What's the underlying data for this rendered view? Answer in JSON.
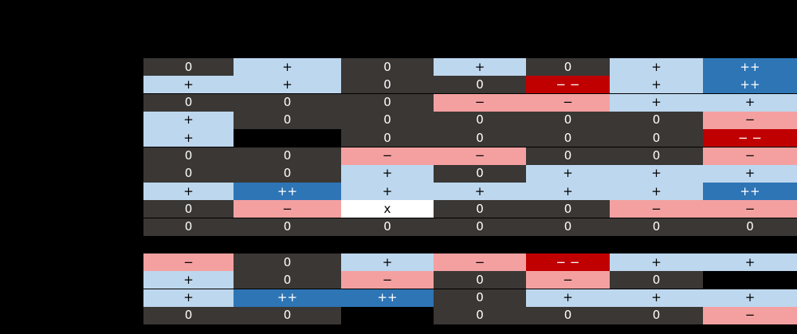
{
  "legend_colors": {
    "0": "#3a3735",
    "+": "#bdd7ee",
    "++": "#2e75b6",
    "−": "#f4a0a0",
    "− −": "#c00000",
    "x": "#ffffff",
    "": "#000000"
  },
  "sections": [
    {
      "rows": [
        [
          "0",
          "+",
          "0",
          "+",
          "0",
          "+",
          "++"
        ],
        [
          "+",
          "+",
          "0",
          "0",
          "− −",
          "+",
          "++"
        ],
        [
          "0",
          "0",
          "0",
          "−",
          "−",
          "+",
          "+"
        ],
        [
          "+",
          "0",
          "0",
          "0",
          "0",
          "0",
          "−"
        ],
        [
          "+",
          "",
          "0",
          "0",
          "0",
          "0",
          "− −"
        ],
        [
          "0",
          "0",
          "−",
          "−",
          "0",
          "0",
          "−"
        ],
        [
          "0",
          "0",
          "+",
          "0",
          "+",
          "+",
          "+"
        ],
        [
          "+",
          "++",
          "+",
          "+",
          "+",
          "+",
          "++"
        ],
        [
          "0",
          "−",
          "x",
          "0",
          "0",
          "−",
          "−"
        ],
        [
          "0",
          "0",
          "0",
          "0",
          "0",
          "0",
          "0"
        ]
      ]
    },
    {
      "rows": [
        [
          "−",
          "0",
          "+",
          "−",
          "− −",
          "+",
          "+"
        ],
        [
          "+",
          "0",
          "−",
          "0",
          "−",
          "0",
          ""
        ],
        [
          "+",
          "++",
          "++",
          "0",
          "+",
          "+",
          "+"
        ],
        [
          "0",
          "0",
          "",
          "0",
          "0",
          "0",
          "−"
        ]
      ]
    }
  ]
}
